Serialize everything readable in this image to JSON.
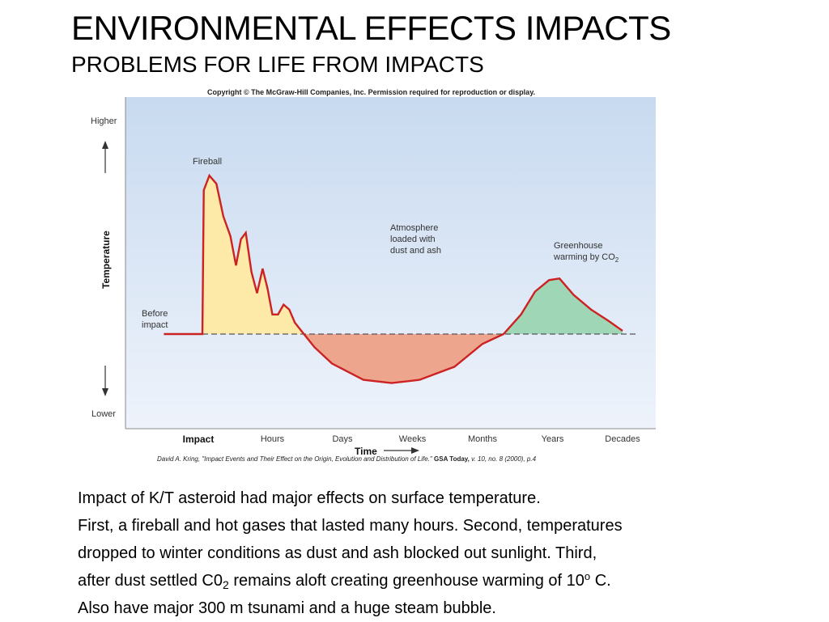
{
  "slide": {
    "title": "ENVIRONMENTAL EFFECTS IMPACTS",
    "subtitle": "PROBLEMS FOR LIFE FROM IMPACTS",
    "copyright": "Copyright © The McGraw-Hill Companies, Inc. Permission required for reproduction or display.",
    "citation_author": "David A. Kring, \"Impact Events and Their Effect on the Origin, Evolution and Distribution of Life.\"",
    "citation_journal": "GSA Today,",
    "citation_issue": "v. 10, no. 8 (2000), p.4",
    "body": {
      "line1": "Impact of K/T asteroid had major effects on surface temperature.",
      "line2": "First, a fireball and hot gases that lasted many hours. Second, temperatures",
      "line3": "dropped to winter conditions as dust and ash blocked out sunlight. Third,",
      "line4_pre": "after dust settled C0",
      "line4_sub": "2",
      "line4_mid": " remains aloft creating greenhouse warming of 10",
      "line4_sup": "o",
      "line4_post": " C.",
      "line5": "Also have major 300 m tsunami and a huge steam bubble."
    }
  },
  "chart_data": {
    "type": "area",
    "title": "",
    "xlabel": "Time",
    "ylabel": "Temperature",
    "y_high_label": "Higher",
    "y_low_label": "Lower",
    "x_ticks": [
      "Impact",
      "Hours",
      "Days",
      "Weeks",
      "Months",
      "Years",
      "Decades"
    ],
    "baseline": 0,
    "ylim": [
      -1,
      1
    ],
    "annotations": {
      "before": [
        "Before",
        "impact"
      ],
      "fireball": "Fireball",
      "dust": [
        "Atmosphere",
        "loaded with",
        "dust and ash"
      ],
      "greenhouse": [
        "Greenhouse",
        "warming by CO"
      ],
      "greenhouse_sub": "2"
    },
    "colors": {
      "background_top": "#c8daf0",
      "background_bottom": "#eef3fb",
      "curve": "#cc2222",
      "fireball_fill": "#fde9a8",
      "cooling_fill": "#eea58e",
      "greenhouse_fill": "#9fd6b6",
      "baseline": "#555555"
    },
    "series": [
      {
        "x": [
          -0.55,
          -0.05,
          0.0,
          0.02,
          0.1,
          0.2,
          0.3,
          0.4,
          0.48,
          0.55,
          0.62,
          0.7,
          0.78,
          0.86,
          0.93,
          1.0,
          1.08,
          1.16,
          1.24,
          1.32,
          1.45,
          1.6,
          1.85,
          2.3,
          2.7,
          3.1,
          3.6,
          4.0,
          4.3,
          4.55,
          4.75,
          4.95,
          5.1,
          5.3,
          5.55,
          5.8,
          6.0
        ],
        "y": [
          0.0,
          0.0,
          0.0,
          0.88,
          0.97,
          0.92,
          0.72,
          0.6,
          0.42,
          0.58,
          0.62,
          0.38,
          0.25,
          0.4,
          0.28,
          0.12,
          0.12,
          0.18,
          0.15,
          0.07,
          0.0,
          -0.08,
          -0.18,
          -0.28,
          -0.3,
          -0.28,
          -0.2,
          -0.06,
          0.0,
          0.12,
          0.26,
          0.33,
          0.34,
          0.24,
          0.15,
          0.08,
          0.02
        ]
      }
    ]
  }
}
